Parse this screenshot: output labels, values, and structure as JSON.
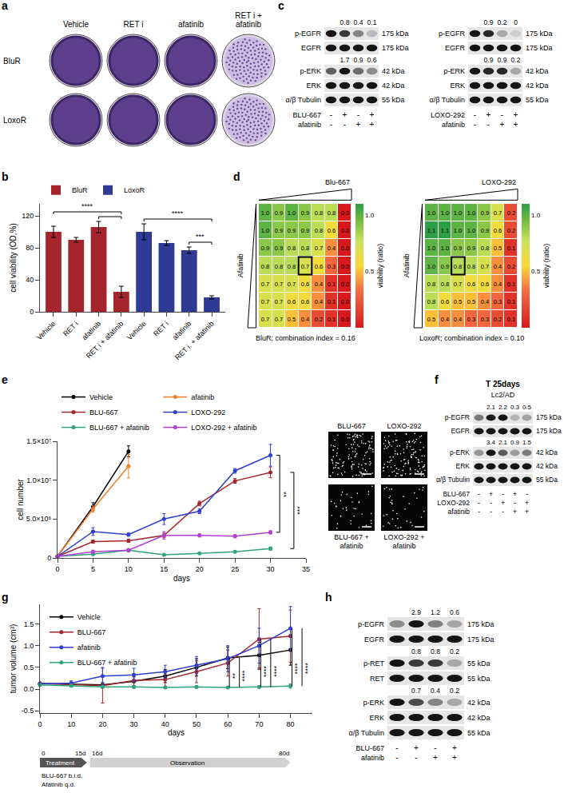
{
  "chart_data": [
    {
      "panel": "b",
      "type": "bar",
      "y_label": "cell viability (OD,%)",
      "categories": [
        "Vehicle",
        "RET i",
        "afatinib",
        "RET i + afatinib",
        "Vehicle",
        "RET i",
        "afatinib",
        "RET i. + afatinib"
      ],
      "series": [
        {
          "name": "BluR",
          "color": "#a4262c",
          "values": [
            100,
            90,
            106,
            25,
            null,
            null,
            null,
            null
          ],
          "error": [
            7,
            3,
            7,
            7,
            null,
            null,
            null,
            null
          ]
        },
        {
          "name": "LoxoR",
          "color": "#2e3a94",
          "values": [
            null,
            null,
            null,
            null,
            100,
            86,
            77,
            18
          ],
          "error": [
            null,
            null,
            null,
            null,
            10,
            3,
            4,
            2
          ]
        }
      ],
      "ylim": [
        0,
        135
      ],
      "yticks": [
        0,
        40,
        80,
        120
      ],
      "legend": "top",
      "comparisons": [
        {
          "from": 2,
          "to": 3
        },
        {
          "from": 0,
          "to": 3,
          "label": "****"
        },
        {
          "from": 6,
          "to": 7,
          "label": "***"
        },
        {
          "from": 4,
          "to": 7,
          "label": "****"
        }
      ]
    },
    {
      "panel": "d",
      "type": "heatmap",
      "x_label": "Blu-667",
      "y_label": "Afatinib",
      "caption": "BluR; combination index = 0.16",
      "cells": [
        [
          1.0,
          0.9,
          1.0,
          0.9,
          0.8,
          0.8,
          0.0
        ],
        [
          1.0,
          0.9,
          0.9,
          0.9,
          0.8,
          0.6,
          0.0
        ],
        [
          0.9,
          0.9,
          0.8,
          0.8,
          0.7,
          0.4,
          0.0
        ],
        [
          0.8,
          0.8,
          0.8,
          0.7,
          0.6,
          0.3,
          0.0
        ],
        [
          0.7,
          0.7,
          0.7,
          0.6,
          0.4,
          0.1,
          0.0
        ],
        [
          0.7,
          0.7,
          0.6,
          0.6,
          0.4,
          0.1,
          0.0
        ],
        [
          0.7,
          0.7,
          0.5,
          0.4,
          0.2,
          0.1,
          0.0
        ]
      ],
      "cell_labels": [
        [
          "1.0",
          "0.9",
          "1.0",
          "0.9",
          "0.8",
          "0.8",
          "0.0"
        ],
        [
          "1.0",
          "0.9",
          "0.9",
          "0.9",
          "0.8",
          "0.6",
          "0.0"
        ],
        [
          "0.9",
          "0.9",
          "0.8",
          "0.8",
          "0.7",
          "0.4",
          "0.0"
        ],
        [
          "0.8",
          "0.8",
          "0.8",
          "0.7",
          "0.6",
          "0.3",
          "0.0"
        ],
        [
          "0.7",
          "0.7",
          "0.7",
          "0.6",
          "0.4",
          "0.1",
          "0.0"
        ],
        [
          "0.7",
          "0.7",
          "0.6",
          "0.6",
          "0.4",
          "0.1",
          "0.0"
        ],
        [
          "0.7",
          "0.7",
          "0.5",
          "0.4",
          "0.2",
          "0.1",
          "0.0"
        ]
      ],
      "boxed_cell": [
        3,
        3
      ],
      "colorbar": {
        "title": "viability (ratio)",
        "range": [
          0,
          1.1
        ],
        "ticks": [
          0.5,
          {
            "value": 1,
            "label": "1.0"
          }
        ]
      },
      "data_labels": true,
      "tick_labels": false
    },
    {
      "type": "heatmap",
      "x_label": "LOXO-292",
      "y_label": "Afatinib",
      "caption": "LoxoR; combination index = 0.10",
      "cells": [
        [
          1.0,
          1.0,
          1.0,
          1.0,
          0.9,
          0.7,
          0.2
        ],
        [
          1.1,
          1.1,
          1.0,
          1.0,
          0.9,
          0.6,
          0.2
        ],
        [
          1.0,
          1.0,
          0.9,
          0.9,
          0.8,
          0.5,
          0.1
        ],
        [
          1.0,
          0.9,
          0.8,
          0.8,
          0.7,
          0.4,
          0.2
        ],
        [
          0.8,
          0.8,
          0.7,
          0.6,
          0.6,
          0.4,
          0.1
        ],
        [
          0.8,
          0.6,
          0.5,
          0.5,
          0.4,
          0.3,
          0.1
        ],
        [
          0.5,
          0.4,
          0.4,
          0.3,
          0.3,
          0.2,
          0.1
        ]
      ],
      "cell_labels": [
        [
          "1.0",
          "1.0",
          "1.0",
          "1.0",
          "0.9",
          "0.7",
          "0.2"
        ],
        [
          "1.1",
          "1.1",
          "1.0",
          "1.0",
          "0.9",
          "0.6",
          "0.2"
        ],
        [
          "1.0",
          "1.0",
          "0.9",
          "0.9",
          "0.8",
          "0.5",
          "0.1"
        ],
        [
          "1.0",
          "0.9",
          "0.8",
          "0.8",
          "0.7",
          "0.4",
          "0.2"
        ],
        [
          "0.8",
          "0.8",
          "0.7",
          "0.6",
          "0.6",
          "0.4",
          "0.1"
        ],
        [
          "0.8",
          "0.6",
          "0.5",
          "0.5",
          "0.4",
          "0.3",
          "0.1"
        ],
        [
          "0.5",
          "0.4",
          "0.4",
          "0.3",
          "0.3",
          "0.2",
          "0.1"
        ]
      ],
      "boxed_cell": [
        3,
        2
      ],
      "colorbar": {
        "title": "viability (ratio)",
        "range": [
          0,
          1.1
        ],
        "ticks": [
          0.5,
          {
            "value": 1,
            "label": "1.0"
          }
        ]
      },
      "data_labels": true,
      "tick_labels": false
    },
    {
      "panel": "e",
      "type": "line",
      "x_label": "days",
      "y_label": "cell number",
      "xlim": [
        0,
        35
      ],
      "xticks": [
        0,
        5,
        10,
        15,
        20,
        25,
        30,
        35
      ],
      "ylim": [
        0,
        15000000
      ],
      "yticks": [
        0,
        {
          "value": 5000000,
          "label": "5.0×10⁶"
        },
        {
          "value": 10000000,
          "label": "1.0×10⁷"
        },
        {
          "value": 15000000,
          "label": "1.5×10⁷"
        }
      ],
      "legend": "top",
      "marker": "circle",
      "series": [
        {
          "name": "Vehicle",
          "color": "#000000",
          "x": [
            0,
            5,
            10
          ],
          "values": [
            200000,
            6600000,
            13700000
          ],
          "error": [
            100000,
            500000,
            700000
          ]
        },
        {
          "name": "afatinib",
          "color": "#f07f2c",
          "x": [
            0,
            5,
            10
          ],
          "values": [
            200000,
            6300000,
            11800000
          ],
          "error": [
            100000,
            400000,
            1500000
          ]
        },
        {
          "name": "BLU-667",
          "color": "#a4262c",
          "x": [
            0,
            5,
            10,
            15,
            20,
            25,
            30
          ],
          "values": [
            200000,
            2100000,
            2200000,
            2900000,
            7000000,
            9900000,
            11000000
          ],
          "error": [
            100000,
            200000,
            200000,
            300000,
            300000,
            300000,
            700000
          ]
        },
        {
          "name": "LOXO-292",
          "color": "#2f3fd0",
          "x": [
            0,
            5,
            10,
            15,
            20,
            25,
            30
          ],
          "values": [
            200000,
            3400000,
            3000000,
            5000000,
            6000000,
            11200000,
            13200000
          ],
          "error": [
            100000,
            500000,
            200000,
            700000,
            300000,
            300000,
            1400000
          ]
        },
        {
          "name": "BLU-667 + afatinib",
          "color": "#2fa37a",
          "x": [
            0,
            5,
            10,
            15,
            20,
            25,
            30
          ],
          "values": [
            200000,
            500000,
            1000000,
            400000,
            600000,
            800000,
            1200000
          ],
          "error": [
            100000,
            100000,
            100000,
            100000,
            100000,
            100000,
            200000
          ]
        },
        {
          "name": "LOXO-292 + afatinib",
          "color": "#b13fd6",
          "x": [
            0,
            5,
            10,
            15,
            20,
            25,
            30
          ],
          "values": [
            200000,
            800000,
            1000000,
            2900000,
            2900000,
            2800000,
            3300000
          ],
          "error": [
            100000,
            200000,
            200000,
            500000,
            200000,
            200000,
            200000
          ]
        }
      ],
      "comparisons": [
        {
          "between": [
            "LOXO-292",
            "LOXO-292 + afatinib"
          ],
          "label": "**"
        },
        {
          "between": [
            "BLU-667",
            "BLU-667 + afatinib"
          ],
          "label": "***"
        }
      ],
      "micrographs": [
        "BLU-667",
        "LOXO-292",
        "BLU-667 + afatinib",
        "LOXO-292 + afatinib"
      ]
    },
    {
      "panel": "g",
      "type": "line",
      "x_label": "days",
      "y_label": "tumor volume (cm³)",
      "x": [
        0,
        10,
        20,
        30,
        40,
        50,
        60,
        70,
        80
      ],
      "xlim": [
        0,
        87
      ],
      "xticks": [
        0,
        10,
        20,
        30,
        40,
        50,
        60,
        70,
        80
      ],
      "ylim": [
        -0.55,
        1.95
      ],
      "yticks": [
        -0.5,
        {
          "value": 0,
          "label": "0.0"
        },
        0.5,
        {
          "value": 1,
          "label": "1.0"
        },
        1.5
      ],
      "legend": "top left",
      "marker": "circle",
      "series": [
        {
          "name": "Vehicle",
          "color": "#000000",
          "values": [
            0.13,
            0.12,
            0.1,
            0.18,
            0.3,
            0.5,
            0.72,
            0.78,
            0.9
          ],
          "error": [
            0.03,
            0.03,
            0.05,
            0.1,
            0.15,
            0.2,
            0.25,
            0.3,
            0.35
          ]
        },
        {
          "name": "BLU-667",
          "color": "#a4262c",
          "values": [
            0.13,
            0.1,
            0.08,
            0.2,
            0.22,
            0.4,
            0.6,
            1.15,
            1.22
          ],
          "error": [
            0.03,
            0.03,
            0.4,
            0.15,
            0.15,
            0.25,
            0.3,
            0.7,
            0.6
          ]
        },
        {
          "name": "afatinib",
          "color": "#2f3fd0",
          "values": [
            0.12,
            0.14,
            0.3,
            0.33,
            0.4,
            0.55,
            0.7,
            1.0,
            1.4
          ],
          "error": [
            0.03,
            0.05,
            0.2,
            0.15,
            0.15,
            0.2,
            0.3,
            0.4,
            0.5
          ]
        },
        {
          "name": "BLU-667 + afatinib",
          "color": "#2fa37a",
          "values": [
            0.1,
            0.08,
            0.05,
            0.05,
            0.04,
            0.05,
            0.04,
            0.05,
            0.07
          ],
          "error": [
            0.03,
            0.03,
            0.03,
            0.03,
            0.02,
            0.03,
            0.02,
            0.03,
            0.05
          ]
        }
      ],
      "comparisons": [
        {
          "x": 60,
          "labels": [
            "**",
            "****"
          ]
        },
        {
          "x": 70,
          "labels": [
            "****",
            "****"
          ]
        },
        {
          "x": 80,
          "labels": [
            "****",
            "****"
          ]
        }
      ],
      "treatment": {
        "ticks": [
          0,
          {
            "value": 15,
            "label": "15d"
          },
          {
            "value": 16,
            "label": "16d"
          },
          {
            "value": 80,
            "label": "80d"
          }
        ],
        "phases": [
          {
            "from": 0,
            "to": 15,
            "label": "Treatment",
            "notes": [
              "BLU-667 b.i.d.",
              "Afatinib q.d."
            ]
          },
          {
            "from": 16,
            "to": 80,
            "label": "Observation"
          }
        ]
      }
    }
  ],
  "a": {
    "letter": "a",
    "columns": [
      "Vehicle",
      "RET i",
      "afatinib",
      "RET i + afatinib"
    ],
    "rows": [
      "BluR",
      "LoxoR"
    ]
  },
  "c": {
    "letter": "c",
    "blots": [
      {
        "rows": [
          {
            "label": "p-EGFR",
            "kda": "175 kDa",
            "quant": [
              null,
              0.8,
              0.4,
              0.1
            ]
          },
          {
            "label": "EGFR",
            "kda": "175 kDa"
          },
          {
            "label": "p-ERK",
            "kda": "42 kDa",
            "quant": [
              null,
              1.7,
              0.9,
              0.6
            ]
          },
          {
            "label": "ERK",
            "kda": "42 kDa"
          },
          {
            "label": "α/β Tubulin",
            "kda": "55 kDa"
          }
        ],
        "treatments": [
          {
            "name": "BLU-667",
            "signs": [
              "-",
              "+",
              "-",
              "+"
            ]
          },
          {
            "name": "afatinib",
            "signs": [
              "-",
              "-",
              "+",
              "+"
            ]
          }
        ]
      },
      {
        "rows": [
          {
            "label": "p-EGFR",
            "kda": "175 kDa",
            "quant": [
              null,
              0.9,
              0.2,
              0
            ]
          },
          {
            "label": "EGFR",
            "kda": "175 kDa"
          },
          {
            "label": "p-ERK",
            "kda": "42 kDa",
            "quant": [
              null,
              0.9,
              0.9,
              0.2
            ]
          },
          {
            "label": "ERK",
            "kda": "42 kDa"
          },
          {
            "label": "α/β Tubulin",
            "kda": "55 kDa"
          }
        ],
        "treatments": [
          {
            "name": "LOXO-292",
            "signs": [
              "-",
              "+",
              "-",
              "+"
            ]
          },
          {
            "name": "afatinib",
            "signs": [
              "-",
              "-",
              "+",
              "+"
            ]
          }
        ]
      }
    ]
  },
  "f": {
    "letter": "f",
    "header": [
      "T 25days",
      "Lc2/AD"
    ],
    "blots": [
      {
        "rows": [
          {
            "label": "p-EGFR",
            "kda": "175 kDa",
            "quant": [
              null,
              2.1,
              2.2,
              0.3,
              0.5
            ]
          },
          {
            "label": "EGFR",
            "kda": "175 kDa"
          },
          {
            "label": "p-ERK",
            "kda": "42 kDa",
            "quant": [
              null,
              3.4,
              2.1,
              0.9,
              1.5
            ]
          },
          {
            "label": "ERK",
            "kda": "42 kDa"
          },
          {
            "label": "α/β Tubulin",
            "kda": "55 kDa"
          }
        ],
        "treatments": [
          {
            "name": "BLU-667",
            "signs": [
              "-",
              "+",
              "-",
              "+",
              "-"
            ]
          },
          {
            "name": "LOXO-292",
            "signs": [
              "-",
              "-",
              "+",
              "-",
              "+"
            ]
          },
          {
            "name": "afatinib",
            "signs": [
              "-",
              "-",
              "-",
              "+",
              "+"
            ]
          }
        ]
      }
    ]
  },
  "h": {
    "letter": "h",
    "blots": [
      {
        "rows": [
          {
            "label": "p-EGFR",
            "kda": "175 kDa",
            "quant": [
              null,
              2.9,
              1.2,
              0.6
            ]
          },
          {
            "label": "EGFR",
            "kda": "175 kDa"
          },
          {
            "label": "p-RET",
            "kda": "55 kDa",
            "quant": [
              null,
              0.8,
              0.8,
              0.2
            ]
          },
          {
            "label": "RET",
            "kda": "55 kDa"
          },
          {
            "label": "p-ERK",
            "kda": "42 kDa",
            "quant": [
              null,
              0.7,
              0.4,
              0.2
            ]
          },
          {
            "label": "ERK",
            "kda": "42 kDa"
          },
          {
            "label": "α/β Tubulin",
            "kda": "55 kDa"
          }
        ],
        "treatments": [
          {
            "name": "BLU-667",
            "signs": [
              "-",
              "+",
              "-",
              "+"
            ]
          },
          {
            "name": "afatinib",
            "signs": [
              "-",
              "-",
              "+",
              "+"
            ]
          }
        ]
      }
    ]
  }
}
